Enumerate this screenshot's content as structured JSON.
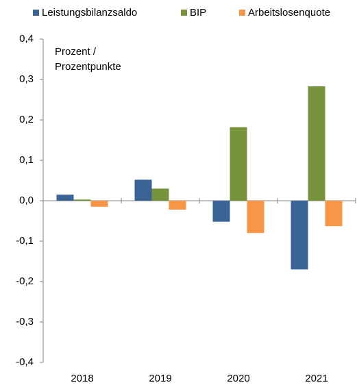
{
  "chart_data": {
    "type": "bar",
    "annotation": [
      "Prozent /",
      "Prozentpunkte"
    ],
    "categories": [
      "2018",
      "2019",
      "2020",
      "2021"
    ],
    "series": [
      {
        "name": "Leistungsbilanzsaldo",
        "color": "#3b6496",
        "values": [
          0.015,
          0.052,
          -0.052,
          -0.17
        ]
      },
      {
        "name": "BIP",
        "color": "#77933c",
        "values": [
          0.003,
          0.03,
          0.182,
          0.283
        ]
      },
      {
        "name": "Arbeitslosenquote",
        "color": "#f79646",
        "values": [
          -0.015,
          -0.022,
          -0.08,
          -0.063
        ]
      }
    ],
    "ylim": [
      -0.4,
      0.4
    ],
    "yticks": [
      {
        "value": -0.4,
        "label": "-0,4"
      },
      {
        "value": -0.3,
        "label": "-0,3"
      },
      {
        "value": -0.2,
        "label": "-0,2"
      },
      {
        "value": -0.1,
        "label": "-0,1"
      },
      {
        "value": 0,
        "label": "0,0"
      },
      {
        "value": 0.1,
        "label": "0,1"
      },
      {
        "value": 0.2,
        "label": "0,2"
      },
      {
        "value": 0.3,
        "label": "0,3"
      },
      {
        "value": 0.4,
        "label": "0,4"
      }
    ],
    "grid": false,
    "legend": "top"
  }
}
